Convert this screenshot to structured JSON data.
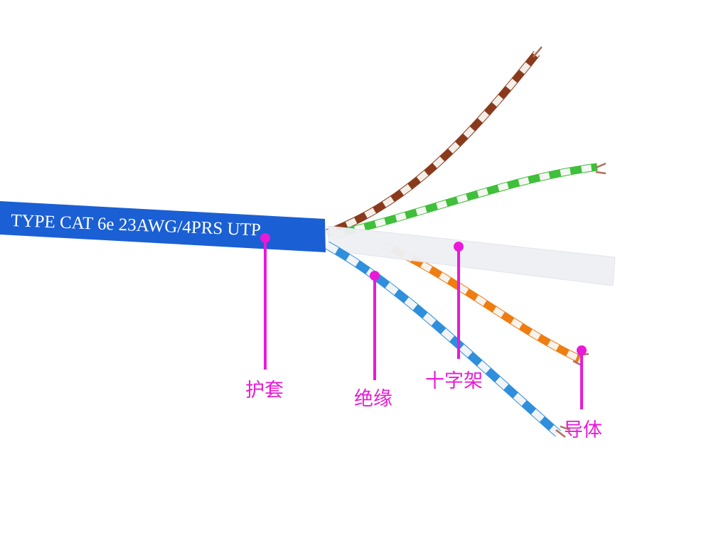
{
  "cable_print": "TYPE CAT 6e 23AWG/4PRS UTP",
  "labels": {
    "jacket": "护套",
    "insulation": "绝缘",
    "cross_separator": "十字架",
    "conductor": "导体"
  },
  "colors": {
    "jacket": "#1a5fd4",
    "label": "#e81ad8",
    "pair_brown": "#8a3a1c",
    "pair_green": "#3fbf3a",
    "pair_orange": "#ef7d12",
    "pair_blue": "#2f8fdc",
    "separator": "#eef0f4"
  }
}
